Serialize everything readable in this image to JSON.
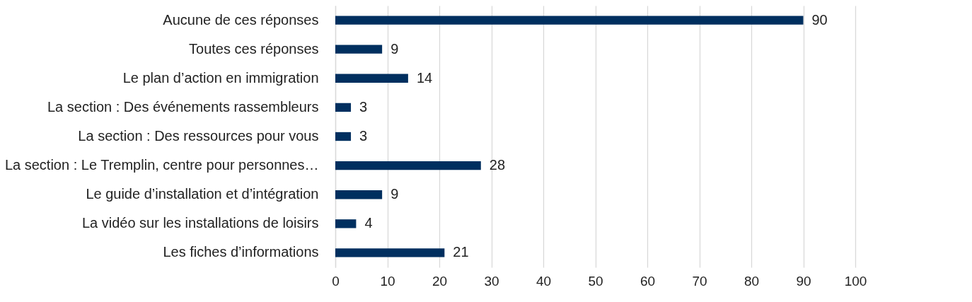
{
  "chart_data": {
    "type": "bar",
    "orientation": "horizontal",
    "categories": [
      "Aucune de ces réponses",
      "Toutes ces réponses",
      "Le plan d’action en immigration",
      "La section : Des événements rassembleurs",
      "La section : Des ressources pour vous",
      "La section : Le Tremplin, centre pour personnes…",
      "Le guide d’installation et d’intégration",
      "La vidéo sur les installations de loisirs",
      "Les fiches d’informations"
    ],
    "values": [
      90,
      9,
      14,
      3,
      3,
      28,
      9,
      4,
      21
    ],
    "color": "#002f5f",
    "xlim": [
      0,
      100
    ],
    "xticks": [
      0,
      10,
      20,
      30,
      40,
      50,
      60,
      70,
      80,
      90,
      100
    ],
    "grid": "x",
    "data_labels": true
  }
}
